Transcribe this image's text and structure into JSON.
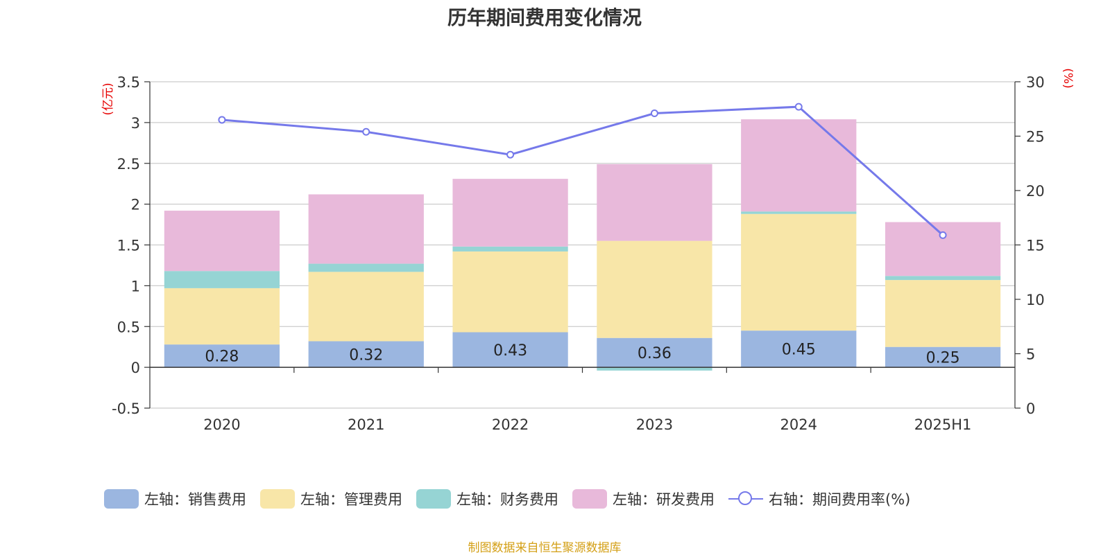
{
  "chart_data": {
    "type": "bar",
    "stacked": true,
    "title": "历年期间费用变化情况",
    "y_left_unit": "(亿元)",
    "y_right_unit": "(%)",
    "categories": [
      "2020",
      "2021",
      "2022",
      "2023",
      "2024",
      "2025H1"
    ],
    "ylim_left": [
      -0.5,
      3.5
    ],
    "yticks_left": [
      "-0.5",
      "0",
      "0.5",
      "1",
      "1.5",
      "2",
      "2.5",
      "3",
      "3.5"
    ],
    "ylim_right": [
      0,
      30
    ],
    "yticks_right": [
      "0",
      "5",
      "10",
      "15",
      "20",
      "25",
      "30"
    ],
    "grid": true,
    "legend_position": "bottom",
    "bar_series": [
      {
        "name": "左轴：销售费用",
        "color": "#9bb6e0",
        "values": [
          0.28,
          0.32,
          0.43,
          0.36,
          0.45,
          0.25
        ],
        "labels": [
          "0.28",
          "0.32",
          "0.43",
          "0.36",
          "0.45",
          "0.25"
        ]
      },
      {
        "name": "左轴：管理费用",
        "color": "#f8e6a8",
        "values": [
          0.69,
          0.85,
          0.99,
          1.19,
          1.43,
          0.82
        ]
      },
      {
        "name": "左轴：财务费用",
        "color": "#96d4d4",
        "values": [
          0.21,
          0.1,
          0.06,
          -0.04,
          0.03,
          0.05
        ]
      },
      {
        "name": "左轴：研发费用",
        "color": "#e8b9da",
        "values": [
          0.74,
          0.85,
          0.83,
          0.94,
          1.13,
          0.66
        ]
      }
    ],
    "line_series": {
      "name": "右轴：期间费用率(%)",
      "color": "#7579ea",
      "values": [
        26.5,
        25.4,
        23.3,
        27.1,
        27.7,
        15.9
      ]
    }
  },
  "source_note": "制图数据来自恒生聚源数据库"
}
